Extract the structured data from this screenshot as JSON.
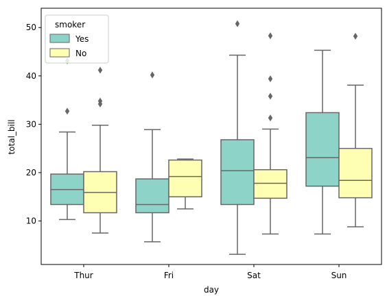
{
  "chart_data": {
    "type": "box",
    "title": "",
    "xlabel": "day",
    "ylabel": "total_bill",
    "categories": [
      "Thur",
      "Fri",
      "Sat",
      "Sun"
    ],
    "ylim": [
      1.0,
      54.0
    ],
    "yticks": [
      10,
      20,
      30,
      40,
      50
    ],
    "grid": false,
    "legend": {
      "title": "smoker",
      "placement": "top-left"
    },
    "series": [
      {
        "name": "Yes",
        "color": "#8dd3c7",
        "boxes": [
          {
            "category": "Thur",
            "whisker_low": 10.3,
            "q1": 13.4,
            "median": 16.5,
            "q3": 19.7,
            "whisker_high": 28.4,
            "outliers": [
              32.7,
              43.1
            ]
          },
          {
            "category": "Fri",
            "whisker_low": 5.7,
            "q1": 11.7,
            "median": 13.4,
            "q3": 18.7,
            "whisker_high": 28.9,
            "outliers": [
              40.2
            ]
          },
          {
            "category": "Sat",
            "whisker_low": 3.1,
            "q1": 13.4,
            "median": 20.4,
            "q3": 26.8,
            "whisker_high": 44.3,
            "outliers": [
              50.8
            ]
          },
          {
            "category": "Sun",
            "whisker_low": 7.3,
            "q1": 17.2,
            "median": 23.1,
            "q3": 32.4,
            "whisker_high": 45.3,
            "outliers": []
          }
        ]
      },
      {
        "name": "No",
        "color": "#ffffb3",
        "boxes": [
          {
            "category": "Thur",
            "whisker_low": 7.5,
            "q1": 11.7,
            "median": 15.9,
            "q3": 20.2,
            "whisker_high": 29.8,
            "outliers": [
              34.2,
              34.8,
              41.2
            ]
          },
          {
            "category": "Fri",
            "whisker_low": 12.5,
            "q1": 15.0,
            "median": 19.2,
            "q3": 22.6,
            "whisker_high": 22.8,
            "outliers": []
          },
          {
            "category": "Sat",
            "whisker_low": 7.3,
            "q1": 14.7,
            "median": 17.8,
            "q3": 20.6,
            "whisker_high": 29.0,
            "outliers": [
              31.3,
              35.8,
              39.4,
              48.3
            ]
          },
          {
            "category": "Sun",
            "whisker_low": 8.8,
            "q1": 14.8,
            "median": 18.4,
            "q3": 25.0,
            "whisker_high": 38.1,
            "outliers": [
              48.2
            ]
          }
        ]
      }
    ]
  }
}
